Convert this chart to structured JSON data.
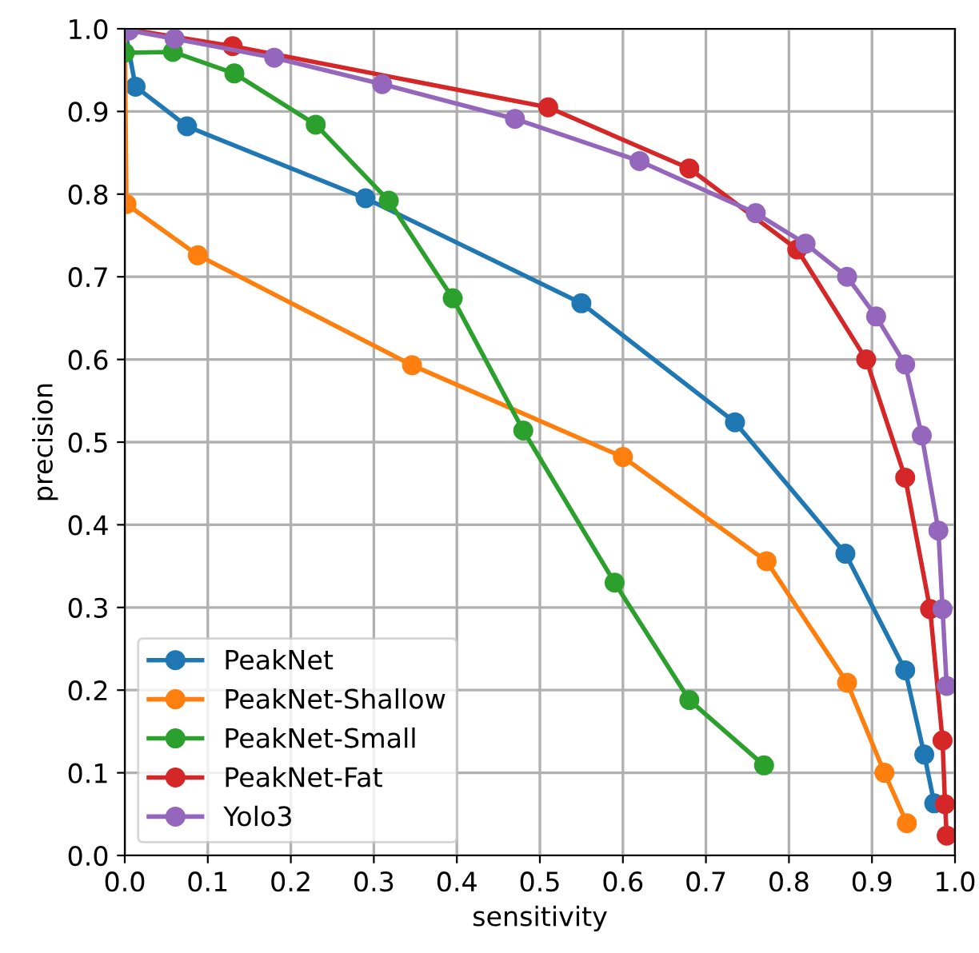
{
  "chart_data": {
    "type": "line",
    "xlabel": "sensitivity",
    "ylabel": "precision",
    "xlim": [
      0,
      1
    ],
    "ylim": [
      0,
      1
    ],
    "xticks": [
      {
        "value": 0,
        "label": "0.0"
      },
      0.1,
      0.2,
      0.3,
      0.4,
      0.5,
      0.6,
      0.7,
      0.8,
      0.9,
      {
        "value": 1,
        "label": "1.0"
      }
    ],
    "yticks": [
      {
        "value": 0,
        "label": "0.0"
      },
      0.1,
      0.2,
      0.3,
      0.4,
      0.5,
      0.6,
      0.7,
      0.8,
      0.9,
      {
        "value": 1,
        "label": "1.0"
      }
    ],
    "grid": true,
    "legend": "bottom left",
    "marker": "circle",
    "line_style": "solid",
    "series": [
      {
        "name": "PeakNet",
        "color": "#1f77b4",
        "x": [
          0.0,
          0.013,
          0.075,
          0.29,
          0.55,
          0.735,
          0.868,
          0.94,
          0.963,
          0.975
        ],
        "values": [
          1.0,
          0.93,
          0.882,
          0.795,
          0.668,
          0.524,
          0.365,
          0.224,
          0.122,
          0.063
        ]
      },
      {
        "name": "PeakNet-Shallow",
        "color": "#ff7f0e",
        "x": [
          0.0,
          0.002,
          0.088,
          0.346,
          0.6,
          0.773,
          0.87,
          0.915,
          0.942
        ],
        "values": [
          1.0,
          0.788,
          0.726,
          0.593,
          0.482,
          0.356,
          0.209,
          0.1,
          0.039
        ]
      },
      {
        "name": "PeakNet-Small",
        "color": "#2ca02c",
        "x": [
          0.0,
          0.058,
          0.132,
          0.23,
          0.318,
          0.395,
          0.48,
          0.59,
          0.68,
          0.77
        ],
        "values": [
          0.971,
          0.972,
          0.946,
          0.884,
          0.792,
          0.674,
          0.514,
          0.33,
          0.188,
          0.109
        ]
      },
      {
        "name": "PeakNet-Fat",
        "color": "#d62728",
        "x": [
          0.0,
          0.13,
          0.51,
          0.68,
          0.81,
          0.893,
          0.94,
          0.97,
          0.985,
          0.988,
          0.99
        ],
        "values": [
          1.0,
          0.979,
          0.905,
          0.831,
          0.733,
          0.6,
          0.457,
          0.298,
          0.139,
          0.062,
          0.024
        ]
      },
      {
        "name": "Yolo3",
        "color": "#9467bd",
        "x": [
          0.005,
          0.06,
          0.18,
          0.31,
          0.47,
          0.62,
          0.76,
          0.82,
          0.87,
          0.905,
          0.94,
          0.96,
          0.98,
          0.985,
          0.99
        ],
        "values": [
          0.998,
          0.988,
          0.965,
          0.933,
          0.891,
          0.84,
          0.777,
          0.74,
          0.7,
          0.652,
          0.594,
          0.508,
          0.393,
          0.298,
          0.205
        ]
      }
    ]
  }
}
